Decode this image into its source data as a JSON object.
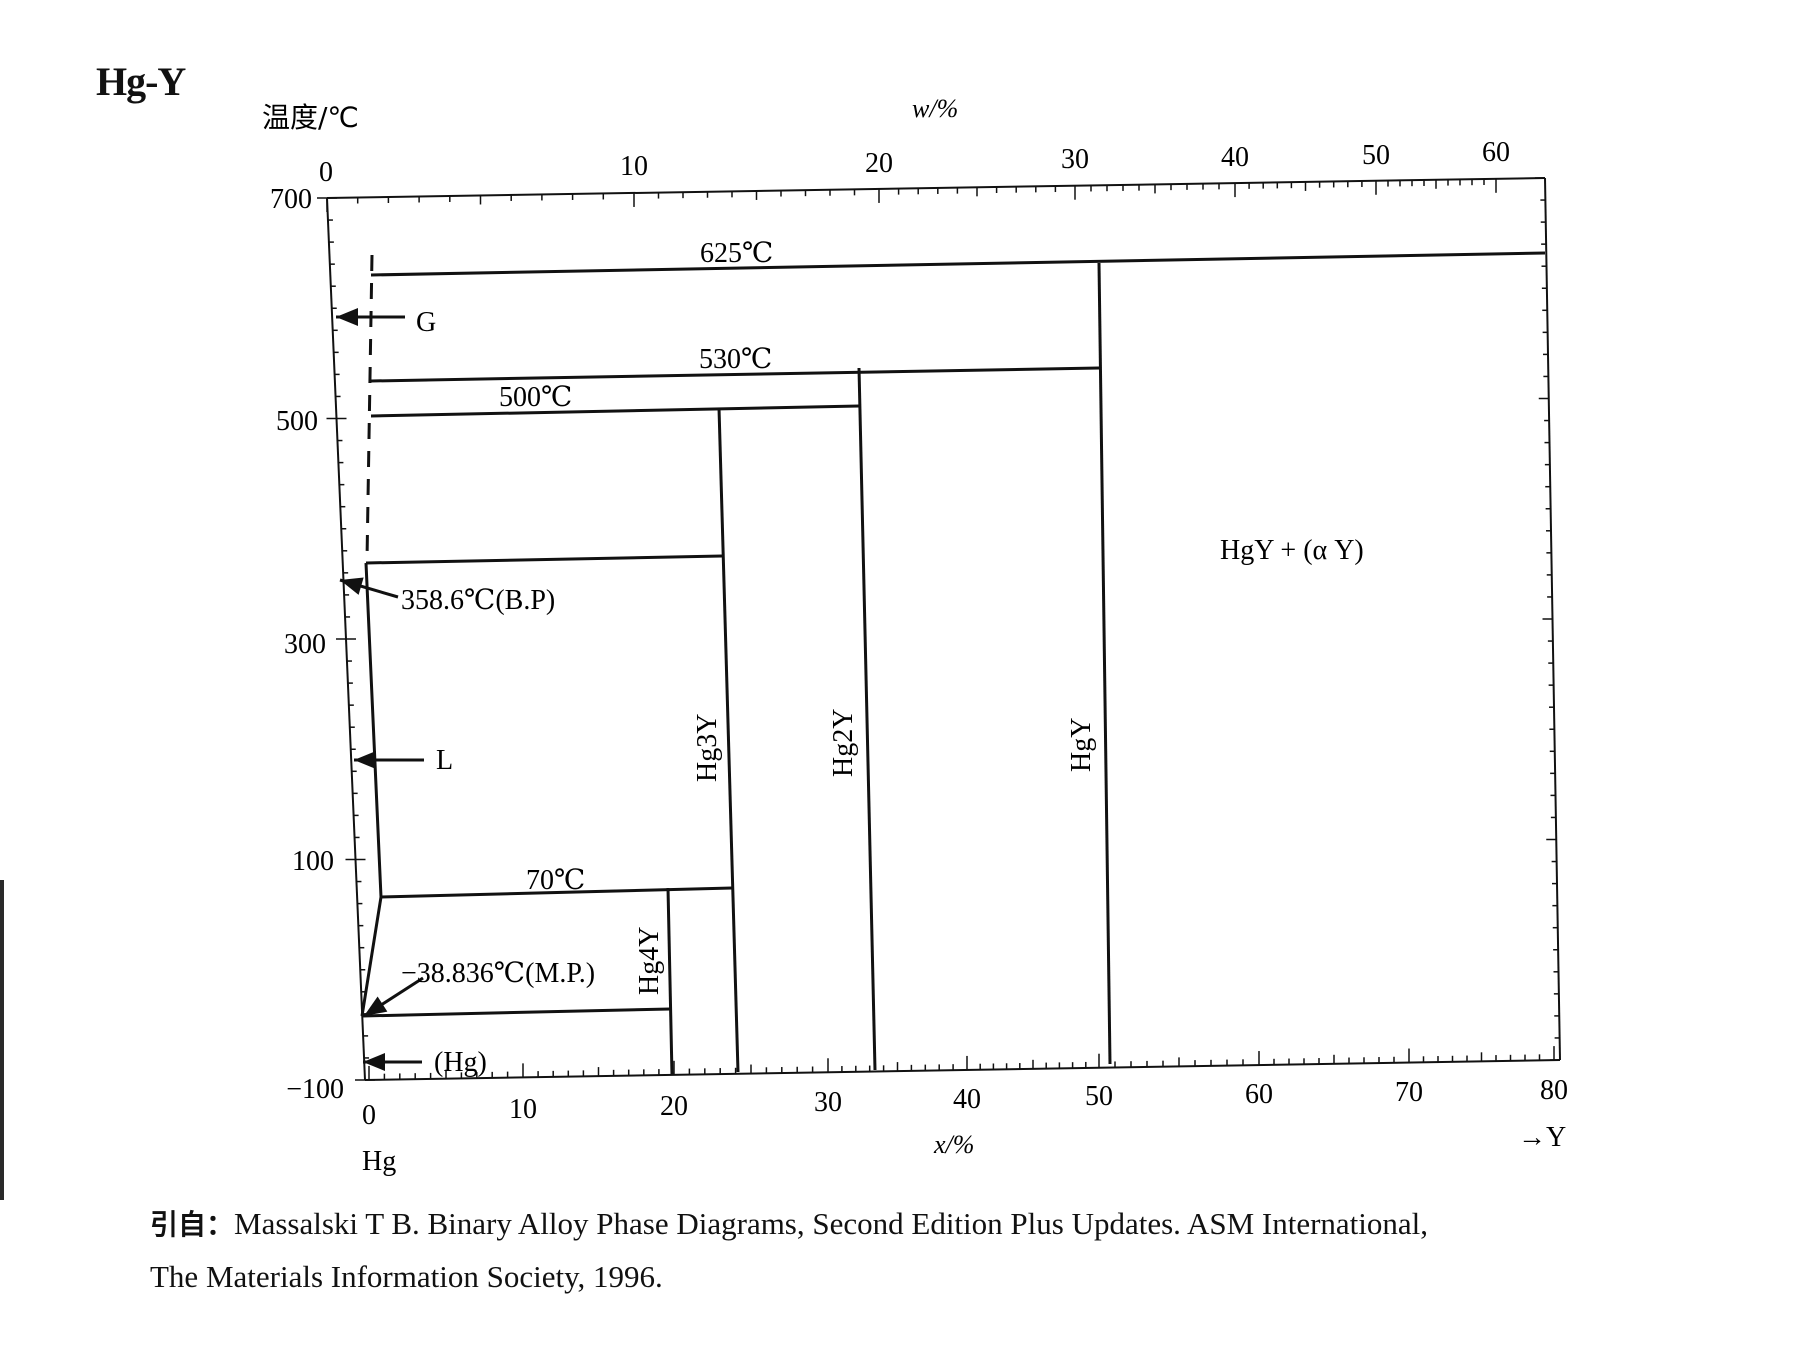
{
  "title": "Hg-Y",
  "y_axis_label": "温度/℃",
  "top_axis_label": "w/%",
  "bottom_axis_label": "x/%",
  "left_element": "Hg",
  "right_element": "→Y",
  "y_ticks": [
    "700",
    "500",
    "300",
    "100",
    "−100"
  ],
  "bottom_ticks": [
    "0",
    "10",
    "20",
    "30",
    "40",
    "50",
    "60",
    "70",
    "80"
  ],
  "top_ticks": [
    "0",
    "10",
    "20",
    "30",
    "40",
    "50",
    "60"
  ],
  "labels": {
    "t625": "625℃",
    "t530": "530℃",
    "t500": "500℃",
    "t70": "70℃",
    "bp": "358.6℃(B.P)",
    "mp": "−38.836℃(M.P.)",
    "gas": "G",
    "liquid": "L",
    "hg_solid": "(Hg)",
    "region_right": "HgY + (α Y)",
    "hg4y": "Hg4Y",
    "hg3y": "Hg3Y",
    "hg2y": "Hg2Y",
    "hgy": "HgY"
  },
  "caption": {
    "lead": "引自：",
    "line1": "Massalski T B.  Binary Alloy Phase Diagrams, Second Edition Plus Updates.  ASM International,",
    "line2": "The Materials Information Society, 1996."
  },
  "chart_data": {
    "type": "phase-diagram",
    "system": "Hg-Y",
    "x_unit": "x/% (at.% Y)",
    "x_range": [
      0,
      80
    ],
    "y_unit": "温度/℃",
    "y_range": [
      -100,
      700
    ],
    "invariants": [
      {
        "temperature": 625,
        "x_range": [
          0.3,
          80
        ]
      },
      {
        "temperature": 530,
        "x_range": [
          0.3,
          50
        ]
      },
      {
        "temperature": 500,
        "x_range": [
          0.3,
          33.3
        ]
      },
      {
        "temperature": 70,
        "x_range": [
          0.8,
          25
        ]
      },
      {
        "temperature": -38.836,
        "x_range": [
          0,
          20
        ]
      }
    ],
    "compounds": [
      {
        "name": "Hg4Y",
        "x": 20,
        "t_max": 70
      },
      {
        "name": "Hg3Y",
        "x": 25,
        "t_max": 358.6
      },
      {
        "name": "Hg2Y",
        "x": 33.3,
        "t_max": 500
      },
      {
        "name": "HgY",
        "x": 50,
        "t_max": 530
      }
    ],
    "special_points": [
      {
        "name": "B.P",
        "temperature": 358.6
      },
      {
        "name": "M.P.",
        "temperature": -38.836
      }
    ]
  }
}
